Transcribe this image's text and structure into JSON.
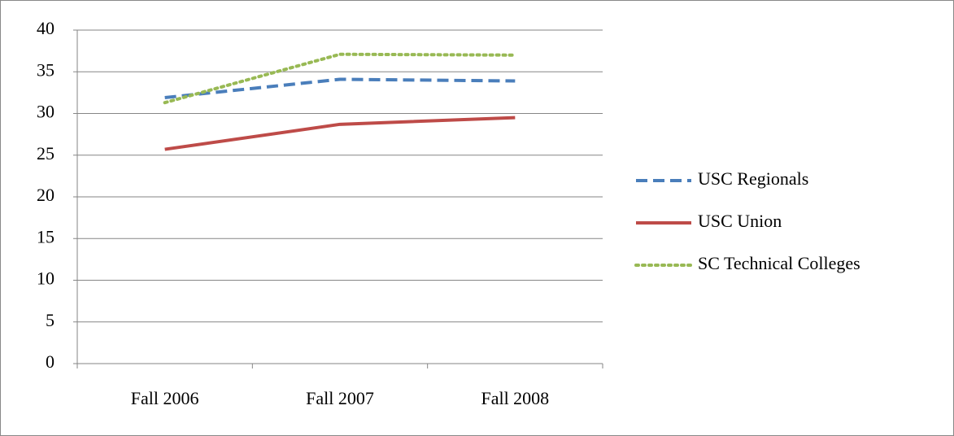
{
  "chart_data": {
    "type": "line",
    "categories": [
      "Fall 2006",
      "Fall 2007",
      "Fall 2008"
    ],
    "series": [
      {
        "name": "USC Regionals",
        "color": "#4a7ebb",
        "dash": "dashed",
        "values": [
          31.9,
          34.1,
          33.9
        ]
      },
      {
        "name": "USC Union",
        "color": "#be4b48",
        "dash": "solid",
        "values": [
          25.7,
          28.7,
          29.5
        ]
      },
      {
        "name": "SC Technical Colleges",
        "color": "#98b954",
        "dash": "dotted",
        "values": [
          31.3,
          37.1,
          37.0
        ]
      }
    ],
    "ylim": [
      0,
      40
    ],
    "yticks": [
      0,
      5,
      10,
      15,
      20,
      25,
      30,
      35,
      40
    ],
    "grid": true,
    "legend": "right"
  }
}
